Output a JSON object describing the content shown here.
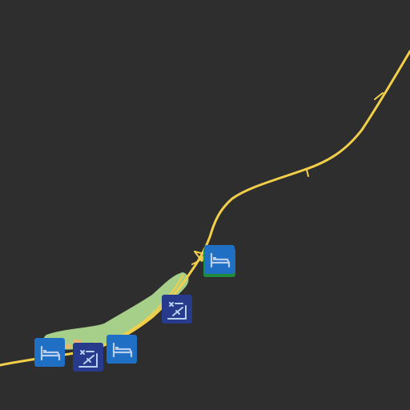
{
  "map": {
    "background_color": "#2e2e2e",
    "road_color": "#f2cf4a",
    "green_area_color": "#a6d08a",
    "settlement_color": "#e8b870",
    "lodging_marker_color": "#1f6fc4",
    "shelter_marker_color": "#283a8c",
    "marker_glyph_color": "#b9cff0",
    "accent_shadow_color": "#1f8a3a"
  },
  "markers": [
    {
      "type": "lodging",
      "icon": "bed-icon"
    },
    {
      "type": "shelter",
      "icon": "sleep-shelter-icon"
    },
    {
      "type": "lodging",
      "icon": "bed-icon"
    },
    {
      "type": "shelter",
      "icon": "sleep-shelter-icon"
    },
    {
      "type": "lodging",
      "icon": "bed-icon"
    }
  ]
}
